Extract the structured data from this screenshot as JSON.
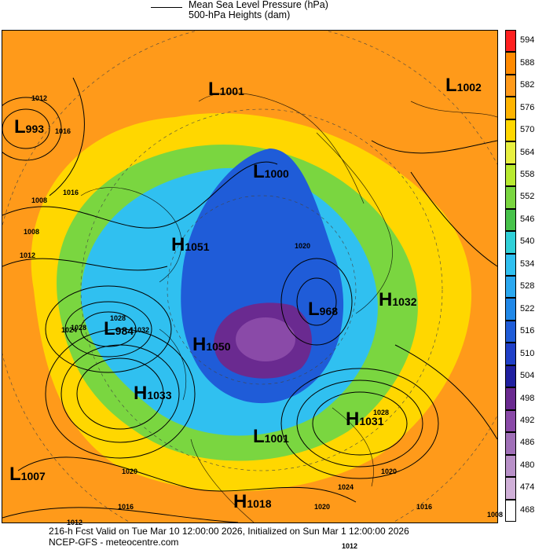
{
  "header": {
    "line1": "Mean Sea Level Pressure (hPa)",
    "line2": "500-hPa Heights (dam)"
  },
  "colorbar": {
    "levels": [
      "594",
      "588",
      "582",
      "576",
      "570",
      "564",
      "558",
      "552",
      "546",
      "540",
      "534",
      "528",
      "522",
      "516",
      "510",
      "504",
      "498",
      "492",
      "486",
      "480",
      "474",
      "468"
    ],
    "colors": [
      "#ff2020",
      "#ff8a00",
      "#ff9a1a",
      "#ffb400",
      "#ffd700",
      "#e8f040",
      "#b8ea30",
      "#7ad640",
      "#46c24a",
      "#30d0d8",
      "#30c0f0",
      "#2aa8f0",
      "#2088e8",
      "#1f5cd8",
      "#2040c8",
      "#2020a0",
      "#6a2a90",
      "#8a4aa8",
      "#a070b8",
      "#b890c8",
      "#d0b0d8",
      "#ffffff"
    ]
  },
  "centers": [
    {
      "type": "L",
      "value": "993"
    },
    {
      "type": "L",
      "value": "1001"
    },
    {
      "type": "L",
      "value": "1002"
    },
    {
      "type": "L",
      "value": "1000"
    },
    {
      "type": "H",
      "value": "1051"
    },
    {
      "type": "L",
      "value": "984"
    },
    {
      "type": "H",
      "value": "1050"
    },
    {
      "type": "L",
      "value": "968"
    },
    {
      "type": "H",
      "value": "1032"
    },
    {
      "type": "H",
      "value": "1033"
    },
    {
      "type": "L",
      "value": "1001"
    },
    {
      "type": "H",
      "value": "1031"
    },
    {
      "type": "L",
      "value": "1007"
    },
    {
      "type": "H",
      "value": "1018"
    }
  ],
  "isobar_labels": [
    "1012",
    "1016",
    "1008",
    "1016",
    "1008",
    "1012",
    "1024",
    "1020",
    "1028",
    "1032",
    "1028",
    "1020",
    "1016",
    "1012",
    "1008",
    "1024",
    "1020",
    "1016",
    "1012",
    "1028",
    "1020"
  ],
  "footer": {
    "line1": "216-h Fcst Valid on Tue Mar 10 12:00:00 2026, Initialized on Sun Mar  1 12:00:00 2026",
    "line2": "NCEP-GFS  - meteocentre.com"
  },
  "map": {
    "type": "polar stereographic weather forecast map",
    "fill_field": "500-hPa heights (dam)",
    "contour_field": "mean sea level pressure (hPa)",
    "coastlines": true
  }
}
